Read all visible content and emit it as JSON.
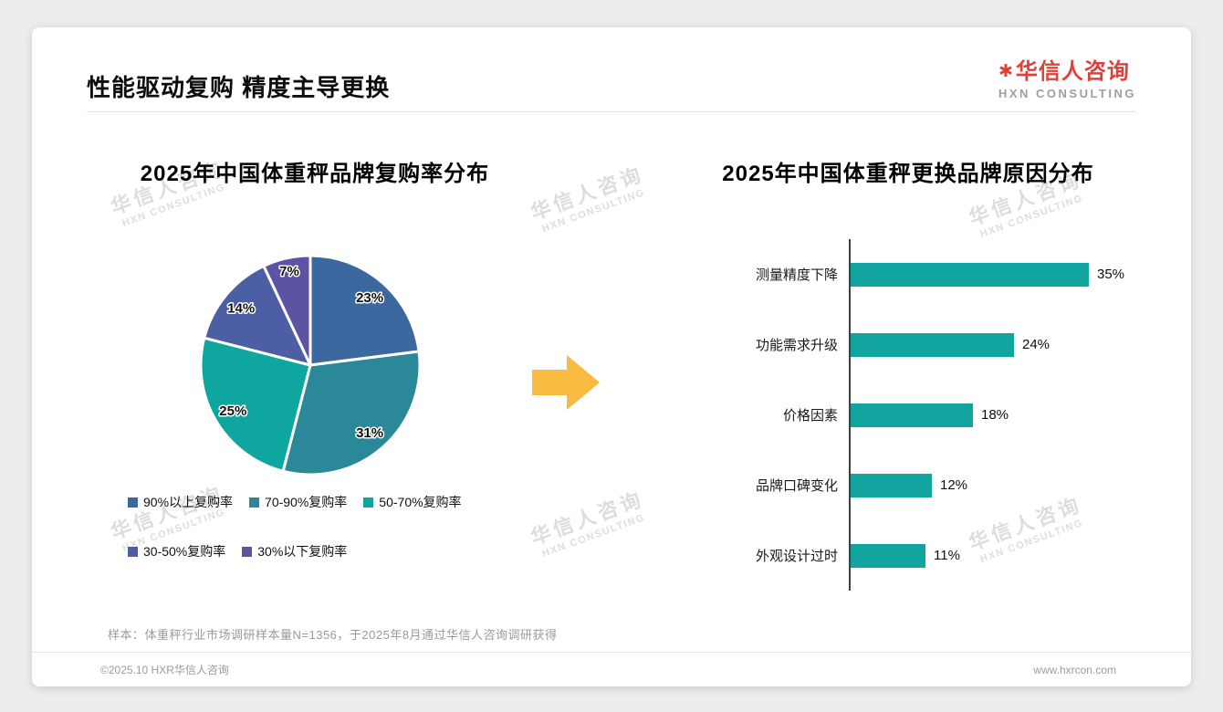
{
  "page": {
    "title": "性能驱动复购 精度主导更换",
    "logo": {
      "mark": "✱",
      "name": "华信人咨询",
      "subtitle": "HXN CONSULTING"
    },
    "watermark": {
      "line1": "华信人咨询",
      "line2": "HXN CONSULTING"
    },
    "sample_note": "样本：体重秤行业市场调研样本量N=1356，于2025年8月通过华信人咨询调研获得",
    "copyright": "©2025.10 HXR华信人咨询",
    "website": "www.hxrcon.com"
  },
  "colors": {
    "accent_red": "#e0403a",
    "arrow_yellow": "#f8ba41",
    "bar_teal": "#12a5a0",
    "axis_gray": "#404040"
  },
  "chart_data": [
    {
      "type": "pie",
      "title": "2025年中国体重秤品牌复购率分布",
      "labels": [
        "90%以上复购率",
        "70-90%复购率",
        "50-70%复购率",
        "30-50%复购率",
        "30%以下复购率"
      ],
      "values": [
        23,
        31,
        25,
        14,
        7
      ],
      "value_labels": [
        "23%",
        "31%",
        "25%",
        "14%",
        "7%"
      ],
      "colors": [
        "#3a689f",
        "#2b8898",
        "#10a6a0",
        "#4d5fa4",
        "#5d53a4"
      ],
      "start_angle": "12-oclock",
      "direction": "clockwise",
      "legend_position": "bottom"
    },
    {
      "type": "bar",
      "orientation": "horizontal",
      "title": "2025年中国体重秤更换品牌原因分布",
      "categories": [
        "测量精度下降",
        "功能需求升级",
        "价格因素",
        "品牌口碑变化",
        "外观设计过时"
      ],
      "values": [
        35,
        24,
        18,
        12,
        11
      ],
      "value_labels": [
        "35%",
        "24%",
        "18%",
        "12%",
        "11%"
      ],
      "xlim": [
        0,
        38
      ],
      "bar_color": "#12a5a0"
    }
  ]
}
